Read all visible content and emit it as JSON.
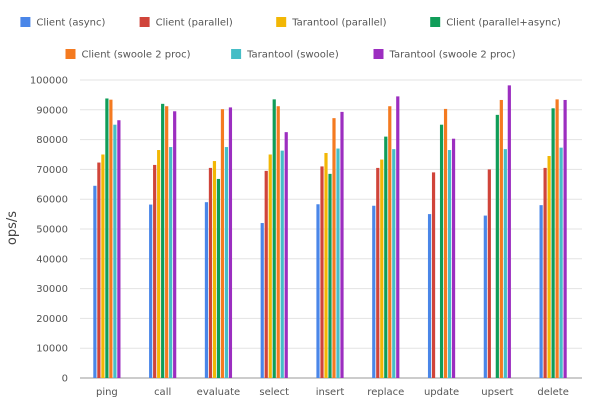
{
  "chart_data": {
    "type": "bar",
    "title": "",
    "xlabel": "",
    "ylabel": "ops/s",
    "ylim": [
      0,
      100000
    ],
    "yticks": [
      0,
      10000,
      20000,
      30000,
      40000,
      50000,
      60000,
      70000,
      80000,
      90000,
      100000
    ],
    "ytick_labels": [
      "0",
      "10000",
      "20000",
      "30000",
      "40000",
      "50000",
      "60000",
      "70000",
      "80000",
      "90000",
      "100000"
    ],
    "grid": true,
    "legend_position": "top",
    "categories": [
      "ping",
      "call",
      "evaluate",
      "select",
      "insert",
      "replace",
      "update",
      "upsert",
      "delete"
    ],
    "series": [
      {
        "name": "Client (async)",
        "color": "#4A86E8",
        "values": [
          64500,
          58200,
          59000,
          52000,
          58300,
          57800,
          55000,
          54500,
          58000
        ]
      },
      {
        "name": "Client (parallel)",
        "color": "#D0443A",
        "values": [
          72300,
          71500,
          70500,
          69500,
          71000,
          70500,
          69000,
          70000,
          70500
        ]
      },
      {
        "name": "Tarantool (parallel)",
        "color": "#F2B705",
        "values": [
          75000,
          76500,
          72800,
          75000,
          75500,
          73300,
          0,
          0,
          74500
        ]
      },
      {
        "name": "Client (parallel+async)",
        "color": "#109D59",
        "values": [
          93800,
          92000,
          66800,
          93500,
          68500,
          81000,
          85000,
          88300,
          90500
        ]
      },
      {
        "name": "Client (swoole 2 proc)",
        "color": "#F47A20",
        "values": [
          93400,
          91200,
          90200,
          91200,
          87200,
          91200,
          90300,
          93300,
          93500
        ]
      },
      {
        "name": "Tarantool (swoole)",
        "color": "#46BDC6",
        "values": [
          85000,
          77500,
          77500,
          76300,
          77000,
          76800,
          76500,
          76800,
          77300
        ]
      },
      {
        "name": "Tarantool (swoole 2 proc)",
        "color": "#9C2EC0",
        "values": [
          86500,
          89500,
          90800,
          82500,
          89300,
          94500,
          80300,
          98200,
          93300
        ]
      }
    ]
  }
}
